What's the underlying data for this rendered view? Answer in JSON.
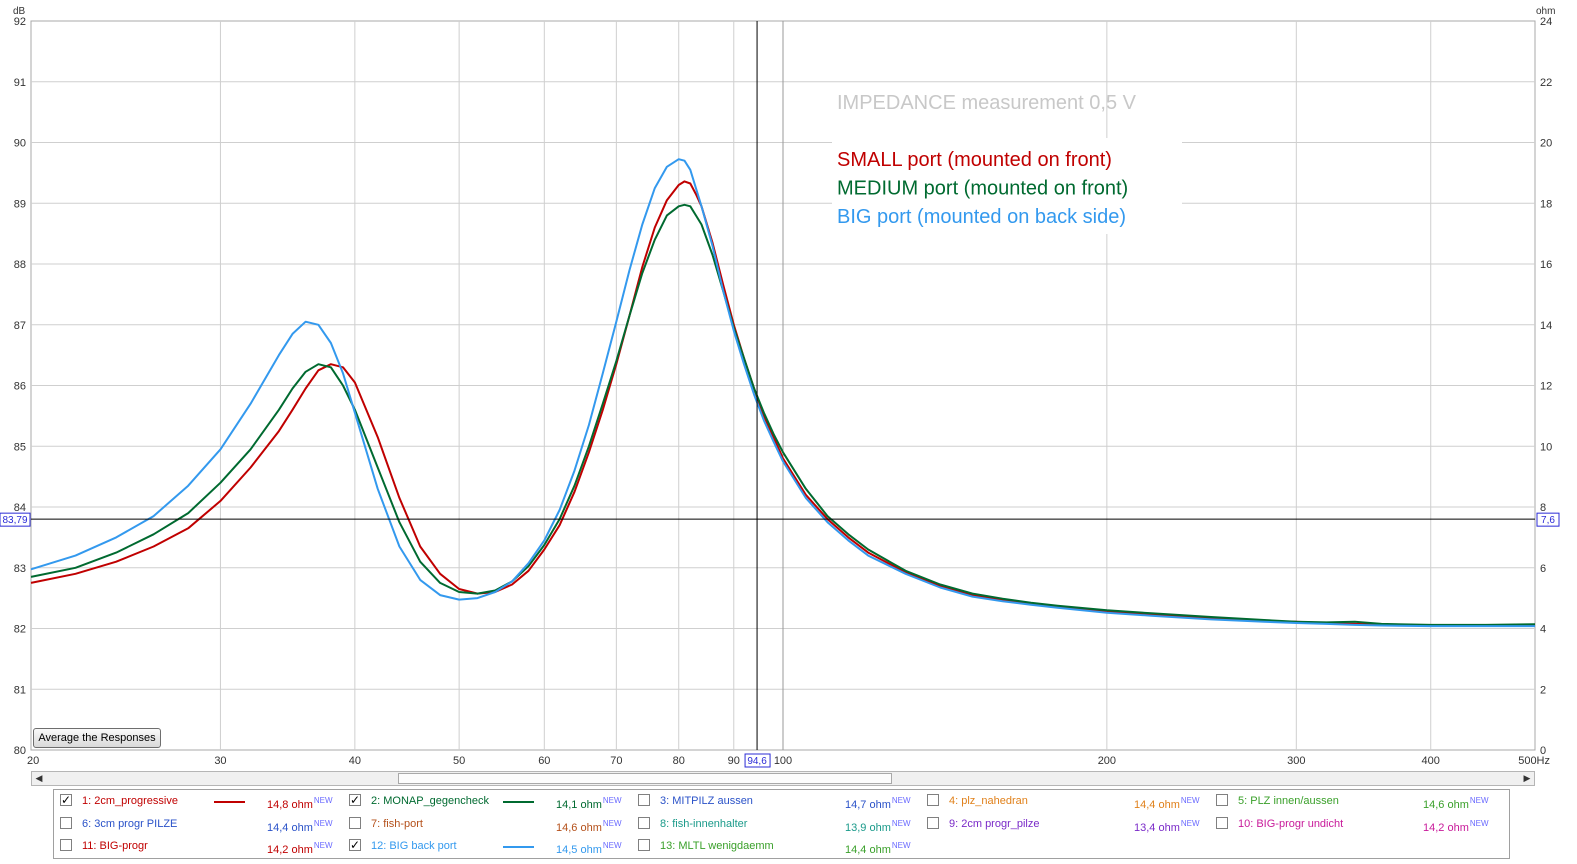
{
  "chart_data": {
    "type": "line",
    "title": "IMPEDANCE measurement 0,5 V",
    "annotation_lines": [
      {
        "text": "SMALL port (mounted on front)",
        "color": "#c00000"
      },
      {
        "text": "MEDIUM port (mounted on front)",
        "color": "#006a30"
      },
      {
        "text": "BIG port (mounted on back side)",
        "color": "#3399ee"
      }
    ],
    "x_scale": "log",
    "xlim": [
      20,
      500
    ],
    "x_unit": "Hz",
    "x_ticks": [
      20,
      30,
      40,
      50,
      60,
      70,
      80,
      90,
      100,
      200,
      300,
      400,
      500
    ],
    "x_tick_labels": [
      "20",
      "30",
      "40",
      "50",
      "60",
      "70",
      "80",
      "90",
      "100",
      "200",
      "300",
      "400",
      "500Hz"
    ],
    "ylim_left": [
      80,
      92
    ],
    "y_left_unit": "dB",
    "y_left_ticks": [
      "80",
      "81",
      "82",
      "83",
      "84",
      "85",
      "86",
      "87",
      "88",
      "89",
      "90",
      "91",
      "92"
    ],
    "ylim_right": [
      0,
      24
    ],
    "y_right_unit": "ohm",
    "y_right_ticks": [
      "0",
      "2",
      "4",
      "6",
      "8",
      "10",
      "12",
      "14",
      "16",
      "18",
      "20",
      "22",
      "24"
    ],
    "grid": true,
    "cursor": {
      "x": 94.6,
      "x_label": "94,6",
      "y_left_label": "83,79",
      "y_right_label": "7,6",
      "y_ohm": 7.6
    },
    "series": [
      {
        "name": "1: 2cm_progressive",
        "color": "#c00000",
        "x": [
          20,
          22,
          24,
          26,
          28,
          30,
          32,
          34,
          35,
          36,
          37,
          38,
          39,
          40,
          42,
          44,
          46,
          48,
          50,
          52,
          54,
          56,
          58,
          60,
          62,
          64,
          66,
          68,
          70,
          72,
          74,
          76,
          78,
          80,
          81,
          82,
          83,
          84,
          86,
          88,
          90,
          92,
          94,
          96,
          98,
          100,
          105,
          110,
          115,
          120,
          130,
          140,
          150,
          160,
          170,
          180,
          200,
          220,
          250,
          280,
          300,
          320,
          340,
          360,
          400,
          450,
          500
        ],
        "y": [
          5.5,
          5.8,
          6.2,
          6.7,
          7.3,
          8.2,
          9.3,
          10.5,
          11.2,
          11.9,
          12.5,
          12.7,
          12.6,
          12.1,
          10.3,
          8.3,
          6.7,
          5.8,
          5.3,
          5.15,
          5.2,
          5.45,
          5.9,
          6.6,
          7.4,
          8.5,
          9.8,
          11.2,
          12.7,
          14.3,
          15.9,
          17.2,
          18.1,
          18.6,
          18.72,
          18.65,
          18.3,
          17.9,
          16.7,
          15.3,
          14.0,
          12.9,
          11.9,
          11.0,
          10.3,
          9.6,
          8.4,
          7.6,
          7.0,
          6.5,
          5.85,
          5.4,
          5.1,
          4.95,
          4.8,
          4.7,
          4.55,
          4.45,
          4.33,
          4.25,
          4.22,
          4.18,
          4.15,
          4.13,
          4.1,
          4.1,
          4.12
        ]
      },
      {
        "name": "2: MONAP_gegencheck",
        "color": "#006a30",
        "x": [
          20,
          22,
          24,
          26,
          28,
          30,
          32,
          34,
          35,
          36,
          37,
          38,
          39,
          40,
          42,
          44,
          46,
          48,
          50,
          52,
          54,
          56,
          58,
          60,
          62,
          64,
          66,
          68,
          70,
          72,
          74,
          76,
          78,
          80,
          81,
          82,
          83,
          84,
          86,
          88,
          90,
          92,
          94,
          96,
          98,
          100,
          105,
          110,
          115,
          120,
          130,
          140,
          150,
          160,
          170,
          180,
          200,
          220,
          250,
          280,
          300,
          320,
          340,
          360,
          400,
          450,
          500
        ],
        "y": [
          5.7,
          6.0,
          6.5,
          7.1,
          7.8,
          8.8,
          9.9,
          11.2,
          11.9,
          12.45,
          12.7,
          12.6,
          12.0,
          11.2,
          9.3,
          7.5,
          6.2,
          5.5,
          5.2,
          5.15,
          5.25,
          5.55,
          6.05,
          6.75,
          7.6,
          8.7,
          10.0,
          11.4,
          12.8,
          14.3,
          15.7,
          16.8,
          17.6,
          17.9,
          17.95,
          17.9,
          17.6,
          17.3,
          16.3,
          15.1,
          13.9,
          12.9,
          11.9,
          11.1,
          10.4,
          9.8,
          8.6,
          7.7,
          7.1,
          6.6,
          5.9,
          5.45,
          5.15,
          4.98,
          4.85,
          4.75,
          4.6,
          4.5,
          4.38,
          4.28,
          4.22,
          4.2,
          4.22,
          4.15,
          4.12,
          4.12,
          4.14
        ]
      },
      {
        "name": "12: BIG back port",
        "color": "#3399ee",
        "x": [
          20,
          22,
          24,
          26,
          28,
          30,
          32,
          34,
          35,
          36,
          37,
          38,
          39,
          40,
          42,
          44,
          46,
          48,
          50,
          52,
          54,
          56,
          58,
          60,
          62,
          64,
          66,
          68,
          70,
          72,
          74,
          76,
          78,
          80,
          81,
          82,
          83,
          84,
          86,
          88,
          90,
          92,
          94,
          96,
          98,
          100,
          105,
          110,
          115,
          120,
          130,
          140,
          150,
          160,
          170,
          180,
          200,
          220,
          250,
          280,
          300,
          320,
          340,
          360,
          400,
          450,
          500
        ],
        "y": [
          5.95,
          6.4,
          7.0,
          7.7,
          8.7,
          9.9,
          11.4,
          13.0,
          13.7,
          14.1,
          14.0,
          13.4,
          12.4,
          11.1,
          8.6,
          6.7,
          5.6,
          5.1,
          4.95,
          5.0,
          5.2,
          5.55,
          6.15,
          6.9,
          7.9,
          9.2,
          10.7,
          12.4,
          14.1,
          15.8,
          17.3,
          18.5,
          19.2,
          19.45,
          19.4,
          19.1,
          18.5,
          17.9,
          16.6,
          15.1,
          13.8,
          12.7,
          11.7,
          10.85,
          10.15,
          9.5,
          8.3,
          7.5,
          6.9,
          6.4,
          5.8,
          5.35,
          5.05,
          4.9,
          4.78,
          4.68,
          4.52,
          4.42,
          4.3,
          4.22,
          4.18,
          4.15,
          4.12,
          4.1,
          4.08,
          4.08,
          4.08
        ]
      }
    ]
  },
  "controls": {
    "average_button": "Average the Responses"
  },
  "legend": [
    {
      "name": "1: 2cm_progressive",
      "value": "14,8 ohm",
      "badge": "NEW",
      "checked": true,
      "color": "#c00000",
      "line": true
    },
    {
      "name": "2: MONAP_gegencheck",
      "value": "14,1 ohm",
      "badge": "NEW",
      "checked": true,
      "color": "#006a30",
      "line": true
    },
    {
      "name": "3: MITPILZ aussen",
      "value": "14,7 ohm",
      "badge": "NEW",
      "checked": false,
      "color": "#2a52c8",
      "line": false
    },
    {
      "name": "4: plz_nahedran",
      "value": "14,4 ohm",
      "badge": "NEW",
      "checked": false,
      "color": "#e0801a",
      "line": false
    },
    {
      "name": "5: PLZ innen/aussen",
      "value": "14,6 ohm",
      "badge": "NEW",
      "checked": false,
      "color": "#3aa02a",
      "line": false
    },
    {
      "name": "6: 3cm progr PILZE",
      "value": "14,4 ohm",
      "badge": "NEW",
      "checked": false,
      "color": "#2a52c8",
      "line": false
    },
    {
      "name": "7: fish-port",
      "value": "14,6 ohm",
      "badge": "NEW",
      "checked": false,
      "color": "#b4501a",
      "line": false
    },
    {
      "name": "8: fish-innenhalter",
      "value": "13,9 ohm",
      "badge": "NEW",
      "checked": false,
      "color": "#1a9a8a",
      "line": false
    },
    {
      "name": "9: 2cm progr_pilze",
      "value": "13,4 ohm",
      "badge": "NEW",
      "checked": false,
      "color": "#7a2ac8",
      "line": false
    },
    {
      "name": "10: BIG-progr undicht",
      "value": "14,2 ohm",
      "badge": "NEW",
      "checked": false,
      "color": "#c81a9a",
      "line": false
    },
    {
      "name": "11: BIG-progr",
      "value": "14,2 ohm",
      "badge": "NEW",
      "checked": false,
      "color": "#c00000",
      "line": false
    },
    {
      "name": "12: BIG back port",
      "value": "14,5 ohm",
      "badge": "NEW",
      "checked": true,
      "color": "#3399ee",
      "line": true
    },
    {
      "name": "13: MLTL wenigdaemm",
      "value": "14,4 ohm",
      "badge": "NEW",
      "checked": false,
      "color": "#3aa02a",
      "line": false
    }
  ]
}
